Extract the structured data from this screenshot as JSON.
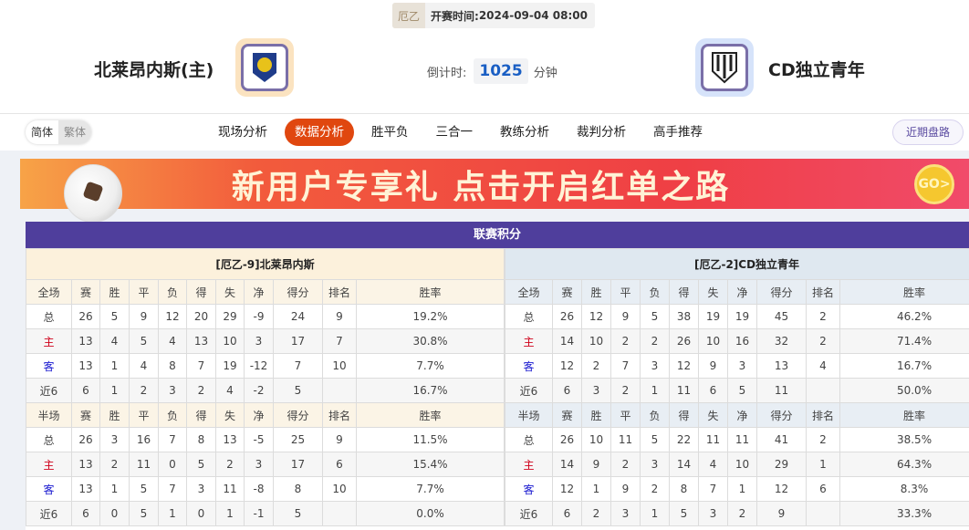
{
  "header": {
    "league": "厄乙",
    "kickoff_label": "开赛时间:",
    "kickoff": "2024-09-04 08:00",
    "home_team": "北莱昂内斯(主)",
    "away_team": "CD独立青年",
    "countdown_label": "倒计时:",
    "countdown_value": "1025",
    "countdown_unit": "分钟"
  },
  "lang": {
    "simplified": "简体",
    "traditional": "繁体"
  },
  "tabs": [
    "现场分析",
    "数据分析",
    "胜平负",
    "三合一",
    "教练分析",
    "裁判分析",
    "高手推荐"
  ],
  "active_tab": "数据分析",
  "recent_button": "近期盘路",
  "banner": {
    "text": "新用户专享礼 点击开启红单之路",
    "go": "GO>"
  },
  "standings": {
    "title": "联赛积分",
    "columns": [
      "赛",
      "胜",
      "平",
      "负",
      "得",
      "失",
      "净",
      "得分",
      "排名",
      "胜率"
    ],
    "full_label": "全场",
    "half_label": "半场",
    "home": {
      "title": "[厄乙-9]北莱昂内斯",
      "full": [
        [
          "总",
          "26",
          "5",
          "9",
          "12",
          "20",
          "29",
          "-9",
          "24",
          "9",
          "19.2%"
        ],
        [
          "主",
          "13",
          "4",
          "5",
          "4",
          "13",
          "10",
          "3",
          "17",
          "7",
          "30.8%"
        ],
        [
          "客",
          "13",
          "1",
          "4",
          "8",
          "7",
          "19",
          "-12",
          "7",
          "10",
          "7.7%"
        ],
        [
          "近6",
          "6",
          "1",
          "2",
          "3",
          "2",
          "4",
          "-2",
          "5",
          "",
          "16.7%"
        ]
      ],
      "half": [
        [
          "总",
          "26",
          "3",
          "16",
          "7",
          "8",
          "13",
          "-5",
          "25",
          "9",
          "11.5%"
        ],
        [
          "主",
          "13",
          "2",
          "11",
          "0",
          "5",
          "2",
          "3",
          "17",
          "6",
          "15.4%"
        ],
        [
          "客",
          "13",
          "1",
          "5",
          "7",
          "3",
          "11",
          "-8",
          "8",
          "10",
          "7.7%"
        ],
        [
          "近6",
          "6",
          "0",
          "5",
          "1",
          "0",
          "1",
          "-1",
          "5",
          "",
          "0.0%"
        ]
      ]
    },
    "away": {
      "title": "[厄乙-2]CD独立青年",
      "full": [
        [
          "总",
          "26",
          "12",
          "9",
          "5",
          "38",
          "19",
          "19",
          "45",
          "2",
          "46.2%"
        ],
        [
          "主",
          "14",
          "10",
          "2",
          "2",
          "26",
          "10",
          "16",
          "32",
          "2",
          "71.4%"
        ],
        [
          "客",
          "12",
          "2",
          "7",
          "3",
          "12",
          "9",
          "3",
          "13",
          "4",
          "16.7%"
        ],
        [
          "近6",
          "6",
          "3",
          "2",
          "1",
          "11",
          "6",
          "5",
          "11",
          "",
          "50.0%"
        ]
      ],
      "half": [
        [
          "总",
          "26",
          "10",
          "11",
          "5",
          "22",
          "11",
          "11",
          "41",
          "2",
          "38.5%"
        ],
        [
          "主",
          "14",
          "9",
          "2",
          "3",
          "14",
          "4",
          "10",
          "29",
          "1",
          "64.3%"
        ],
        [
          "客",
          "12",
          "1",
          "9",
          "2",
          "8",
          "7",
          "1",
          "12",
          "6",
          "8.3%"
        ],
        [
          "近6",
          "6",
          "2",
          "3",
          "1",
          "5",
          "3",
          "2",
          "9",
          "",
          "33.3%"
        ]
      ]
    }
  }
}
